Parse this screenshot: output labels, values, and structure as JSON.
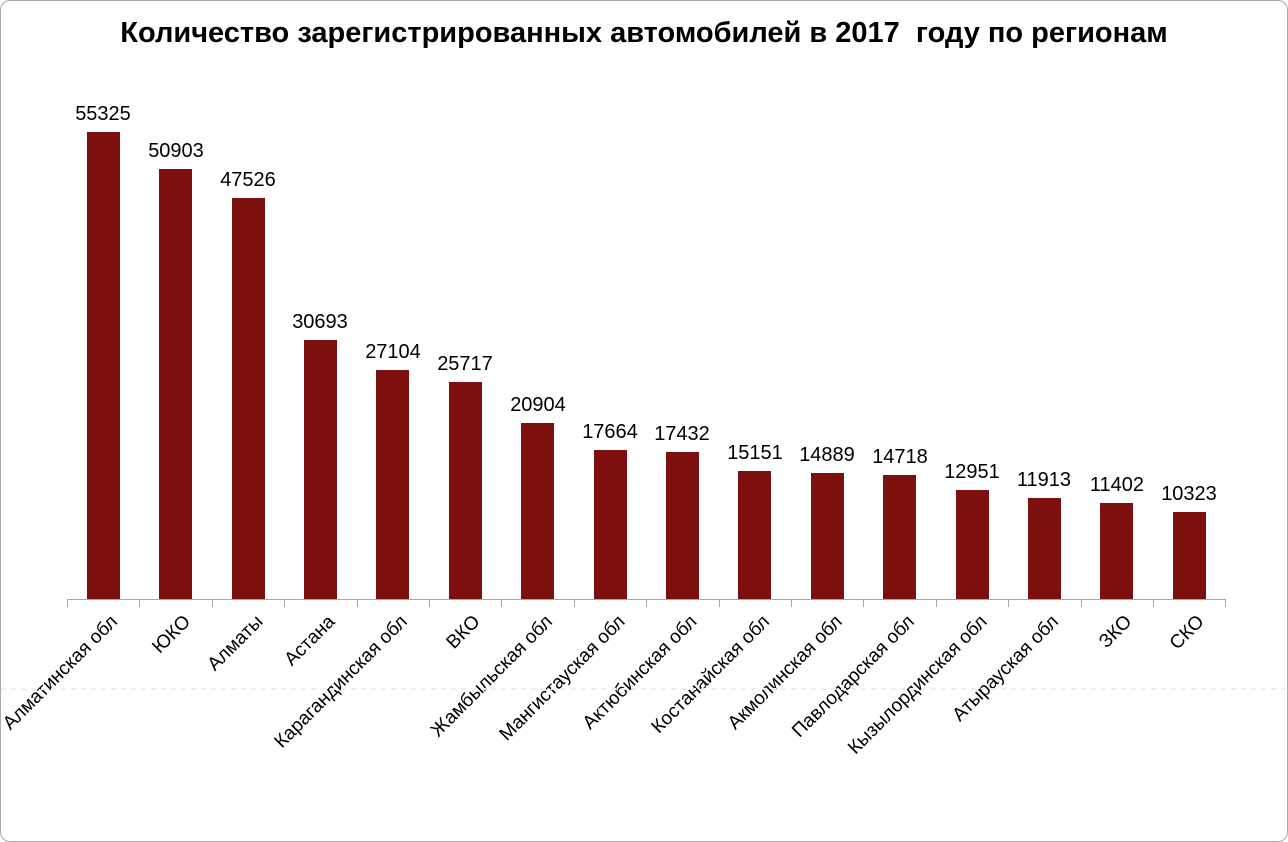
{
  "chart_data": {
    "type": "bar",
    "title": "Количество зарегистрированных автомобилей в 2017  году по регионам",
    "categories": [
      "Алматинская обл",
      "ЮКО",
      "Алматы",
      "Астана",
      "Карагандинская обл",
      "ВКО",
      "Жамбыльская обл",
      "Мангистауская обл",
      "Актюбинская обл",
      "Костанайская обл",
      "Акмолинская обл",
      "Павлодарская обл",
      "Кызылординская обл",
      "Атырауская обл",
      "ЗКО",
      "СКО"
    ],
    "values": [
      55325,
      50903,
      47526,
      30693,
      27104,
      25717,
      20904,
      17664,
      17432,
      15151,
      14889,
      14718,
      12951,
      11913,
      11402,
      10323
    ],
    "xlabel": "",
    "ylabel": "",
    "y_axis_visible": false,
    "grid": false,
    "legend": "none",
    "data_labels": true,
    "bar_color": "#7E0F0F",
    "axis_color": "#a6a6a6",
    "label_color": "#000000",
    "title_color": "#000000"
  }
}
